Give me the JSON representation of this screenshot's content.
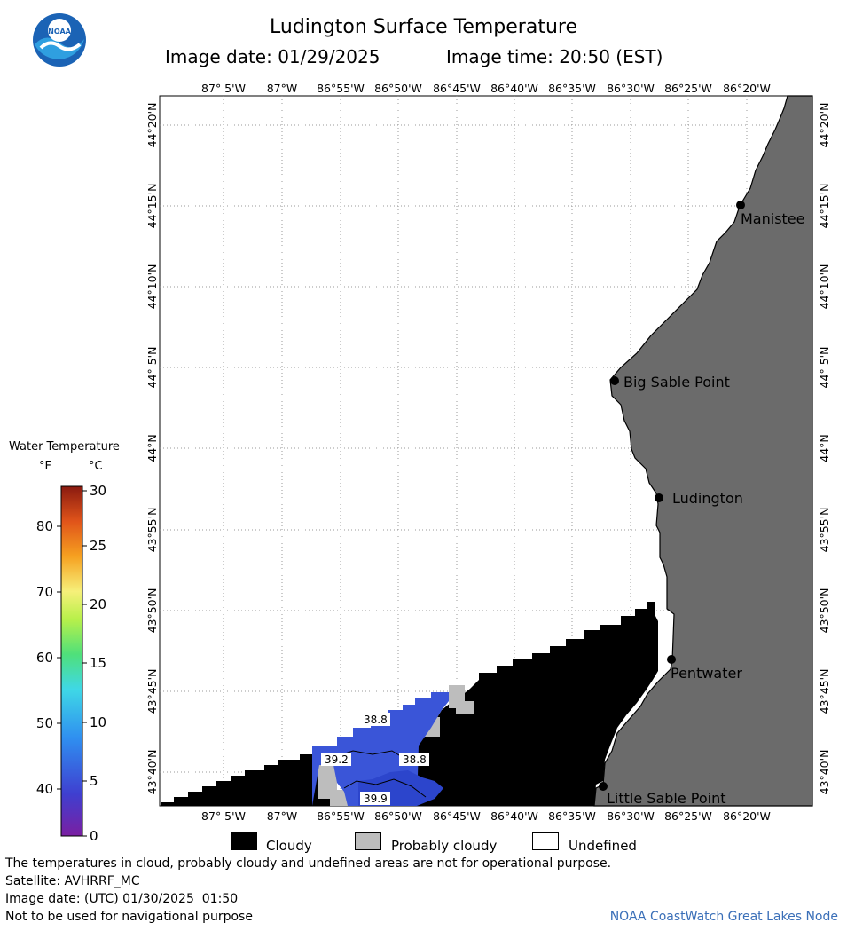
{
  "header": {
    "title": "Ludington Surface Temperature",
    "image_date": "Image date: 01/29/2025",
    "image_time": "Image time: 20:50 (EST)"
  },
  "logo": {
    "text": "NOAA"
  },
  "map": {
    "lon_labels": [
      "87° 5'W",
      "87°W",
      "86°55'W",
      "86°50'W",
      "86°45'W",
      "86°40'W",
      "86°35'W",
      "86°30'W",
      "86°25'W",
      "86°20'W"
    ],
    "lat_labels": [
      "44°20'N",
      "44°15'N",
      "44°10'N",
      "44° 5'N",
      "44°N",
      "43°55'N",
      "43°50'N",
      "43°45'N",
      "43°40'N"
    ],
    "places": [
      "Manistee",
      "Big Sable Point",
      "Ludington",
      "Pentwater",
      "Little Sable Point"
    ],
    "isotherms": [
      "38.8",
      "39.2",
      "38.8",
      "39.9"
    ],
    "colors": {
      "land": "#6b6b6b",
      "cloud": "#000000",
      "probably_cloudy": "#bdbdbd",
      "water_38": "#3a55d8",
      "water_39": "#2c45cc"
    }
  },
  "legend": {
    "title": "Water Temperature",
    "unit_f": "°F",
    "unit_c": "°C",
    "f_ticks": [
      "80",
      "70",
      "60",
      "50",
      "40"
    ],
    "c_ticks": [
      "30",
      "25",
      "20",
      "15",
      "10",
      "5",
      "0"
    ]
  },
  "key": {
    "cloudy": "Cloudy",
    "probably_cloudy": "Probably cloudy",
    "undefined": "Undefined"
  },
  "footer": {
    "note": "The temperatures in cloud, probably cloudy and undefined areas are not for operational purpose.",
    "satellite": "Satellite: AVHRRF_MC",
    "utc_date": "Image date: (UTC) 01/30/2025  01:50",
    "nav_warning": "Not to be used for navigational purpose",
    "credit": "NOAA CoastWatch Great Lakes Node"
  }
}
